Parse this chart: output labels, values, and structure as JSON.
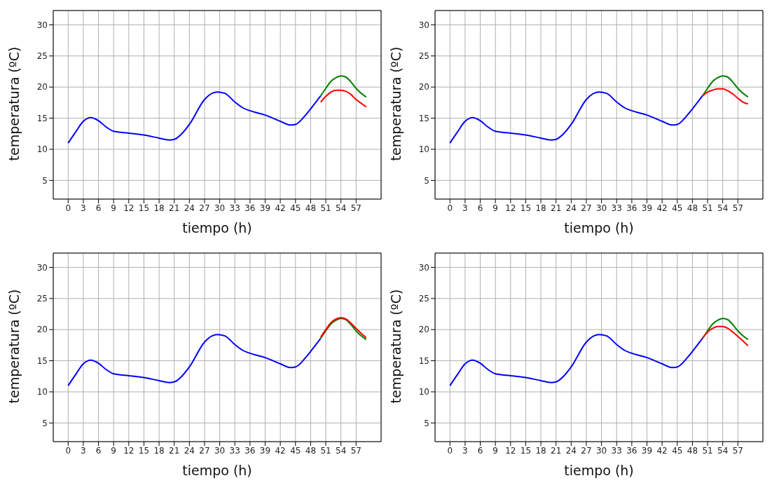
{
  "chart_data": [
    {
      "type": "line",
      "xlabel": "tiempo (h)",
      "ylabel": "temperatura (ºC)",
      "xlim": [
        -2.95,
        61.95
      ],
      "ylim": [
        2,
        32.3
      ],
      "xticks": [
        0,
        3,
        6,
        9,
        12,
        15,
        18,
        21,
        24,
        27,
        30,
        33,
        36,
        39,
        42,
        45,
        48,
        51,
        54,
        57
      ],
      "yticks": [
        5,
        10,
        15,
        20,
        25,
        30
      ],
      "grid": true,
      "legend": false,
      "marker": "none",
      "line_style": "solid",
      "series": [
        {
          "color": "#0000ff",
          "x": [
            0,
            1.5,
            3,
            4.5,
            6,
            7.5,
            9,
            12,
            15,
            18,
            20,
            21,
            22.5,
            24,
            27,
            28.5,
            29.5,
            31,
            33,
            34.5,
            36,
            39,
            42,
            44,
            45,
            47,
            48,
            50
          ],
          "values": [
            11,
            12.8,
            14.5,
            15.1,
            14.6,
            13.6,
            12.9,
            12.6,
            12.3,
            11.8,
            11.5,
            11.6,
            12.5,
            14,
            18,
            19,
            19.2,
            19,
            17.6,
            16.7,
            16.2,
            15.5,
            14.5,
            13.9,
            14,
            15.5,
            16.5,
            18.6
          ]
        },
        {
          "color": "#008000",
          "x": [
            50,
            51,
            52,
            53,
            54,
            55,
            56,
            57,
            58,
            59
          ],
          "values": [
            18.6,
            19.8,
            20.9,
            21.5,
            21.8,
            21.6,
            20.8,
            19.8,
            19,
            18.4
          ]
        },
        {
          "color": "#ff0000",
          "x": [
            50,
            51,
            52,
            53,
            54,
            55,
            56,
            57,
            58,
            59
          ],
          "values": [
            17.6,
            18.5,
            19.2,
            19.5,
            19.5,
            19.3,
            18.8,
            18,
            17.4,
            16.8
          ]
        }
      ]
    },
    {
      "type": "line",
      "xlabel": "tiempo (h)",
      "ylabel": "temperatura (ºC)",
      "xlim": [
        -2.95,
        61.95
      ],
      "ylim": [
        2,
        32.3
      ],
      "xticks": [
        0,
        3,
        6,
        9,
        12,
        15,
        18,
        21,
        24,
        27,
        30,
        33,
        36,
        39,
        42,
        45,
        48,
        51,
        54,
        57
      ],
      "yticks": [
        5,
        10,
        15,
        20,
        25,
        30
      ],
      "grid": true,
      "legend": false,
      "marker": "none",
      "line_style": "solid",
      "series": [
        {
          "color": "#0000ff",
          "x": [
            0,
            1.5,
            3,
            4.5,
            6,
            7.5,
            9,
            12,
            15,
            18,
            20,
            21,
            22.5,
            24,
            27,
            28.5,
            29.5,
            31,
            33,
            34.5,
            36,
            39,
            42,
            44,
            45,
            47,
            48,
            50
          ],
          "values": [
            11,
            12.8,
            14.5,
            15.1,
            14.6,
            13.6,
            12.9,
            12.6,
            12.3,
            11.8,
            11.5,
            11.6,
            12.5,
            14,
            18,
            19,
            19.2,
            19,
            17.6,
            16.7,
            16.2,
            15.5,
            14.5,
            13.9,
            14,
            15.5,
            16.5,
            18.6
          ]
        },
        {
          "color": "#008000",
          "x": [
            50,
            51,
            52,
            53,
            54,
            55,
            56,
            57,
            58,
            59
          ],
          "values": [
            18.6,
            19.8,
            20.9,
            21.5,
            21.8,
            21.6,
            20.8,
            19.8,
            19,
            18.4
          ]
        },
        {
          "color": "#ff0000",
          "x": [
            50,
            51,
            52,
            53,
            54,
            55,
            56,
            57,
            58,
            59
          ],
          "values": [
            18.6,
            19.2,
            19.5,
            19.7,
            19.7,
            19.4,
            18.9,
            18.2,
            17.6,
            17.3
          ]
        }
      ]
    },
    {
      "type": "line",
      "xlabel": "tiempo (h)",
      "ylabel": "temperatura (ºC)",
      "xlim": [
        -2.95,
        61.95
      ],
      "ylim": [
        2,
        32.3
      ],
      "xticks": [
        0,
        3,
        6,
        9,
        12,
        15,
        18,
        21,
        24,
        27,
        30,
        33,
        36,
        39,
        42,
        45,
        48,
        51,
        54,
        57
      ],
      "yticks": [
        5,
        10,
        15,
        20,
        25,
        30
      ],
      "grid": true,
      "legend": false,
      "marker": "none",
      "line_style": "solid",
      "series": [
        {
          "color": "#0000ff",
          "x": [
            0,
            1.5,
            3,
            4.5,
            6,
            7.5,
            9,
            12,
            15,
            18,
            20,
            21,
            22.5,
            24,
            27,
            28.5,
            29.5,
            31,
            33,
            34.5,
            36,
            39,
            42,
            44,
            45,
            47,
            48,
            50
          ],
          "values": [
            11,
            12.8,
            14.5,
            15.1,
            14.6,
            13.6,
            12.9,
            12.6,
            12.3,
            11.8,
            11.5,
            11.6,
            12.5,
            14,
            18,
            19,
            19.2,
            19,
            17.6,
            16.7,
            16.2,
            15.5,
            14.5,
            13.9,
            14,
            15.5,
            16.5,
            18.6
          ]
        },
        {
          "color": "#008000",
          "x": [
            50,
            51,
            52,
            53,
            54,
            55,
            56,
            57,
            58,
            59
          ],
          "values": [
            18.6,
            19.8,
            20.9,
            21.5,
            21.8,
            21.6,
            20.8,
            19.8,
            19,
            18.4
          ]
        },
        {
          "color": "#ff0000",
          "x": [
            50,
            51,
            52,
            53,
            54,
            55,
            56,
            57,
            58,
            59
          ],
          "values": [
            18.8,
            20,
            21.1,
            21.7,
            21.9,
            21.7,
            21,
            20.2,
            19.4,
            18.7
          ]
        }
      ]
    },
    {
      "type": "line",
      "xlabel": "tiempo (h)",
      "ylabel": "temperatura (ºC)",
      "xlim": [
        -2.95,
        61.95
      ],
      "ylim": [
        2,
        32.3
      ],
      "xticks": [
        0,
        3,
        6,
        9,
        12,
        15,
        18,
        21,
        24,
        27,
        30,
        33,
        36,
        39,
        42,
        45,
        48,
        51,
        54,
        57
      ],
      "yticks": [
        5,
        10,
        15,
        20,
        25,
        30
      ],
      "grid": true,
      "legend": false,
      "marker": "none",
      "line_style": "solid",
      "series": [
        {
          "color": "#0000ff",
          "x": [
            0,
            1.5,
            3,
            4.5,
            6,
            7.5,
            9,
            12,
            15,
            18,
            20,
            21,
            22.5,
            24,
            27,
            28.5,
            29.5,
            31,
            33,
            34.5,
            36,
            39,
            42,
            44,
            45,
            47,
            48,
            50
          ],
          "values": [
            11,
            12.8,
            14.5,
            15.1,
            14.6,
            13.6,
            12.9,
            12.6,
            12.3,
            11.8,
            11.5,
            11.6,
            12.5,
            14,
            18,
            19,
            19.2,
            19,
            17.6,
            16.7,
            16.2,
            15.5,
            14.5,
            13.9,
            14,
            15.5,
            16.5,
            18.6
          ]
        },
        {
          "color": "#008000",
          "x": [
            50,
            51,
            52,
            53,
            54,
            55,
            56,
            57,
            58,
            59
          ],
          "values": [
            18.6,
            19.8,
            20.9,
            21.5,
            21.8,
            21.6,
            20.8,
            19.8,
            19,
            18.4
          ]
        },
        {
          "color": "#ff0000",
          "x": [
            50,
            51,
            52,
            53,
            54,
            55,
            56,
            57,
            58,
            59
          ],
          "values": [
            18.6,
            19.6,
            20.2,
            20.5,
            20.5,
            20.2,
            19.6,
            18.9,
            18.2,
            17.4
          ]
        }
      ]
    }
  ]
}
